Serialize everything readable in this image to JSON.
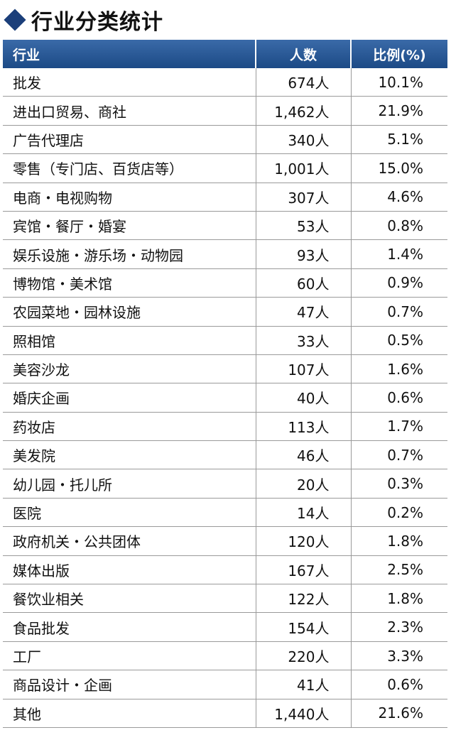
{
  "title": "行业分类统计",
  "table": {
    "headers": [
      "行业",
      "人数",
      "比例(%)"
    ],
    "rows": [
      {
        "industry": "批发",
        "count": "674人",
        "pct": "10.1%"
      },
      {
        "industry": "进出口贸易、商社",
        "count": "1,462人",
        "pct": "21.9%"
      },
      {
        "industry": "广告代理店",
        "count": "340人",
        "pct": "5.1%"
      },
      {
        "industry": "零售（专门店、百货店等）",
        "count": "1,001人",
        "pct": "15.0%"
      },
      {
        "industry": "电商・电视购物",
        "count": "307人",
        "pct": "4.6%"
      },
      {
        "industry": "宾馆・餐厅・婚宴",
        "count": "53人",
        "pct": "0.8%"
      },
      {
        "industry": "娱乐设施・游乐场・动物园",
        "count": "93人",
        "pct": "1.4%"
      },
      {
        "industry": "博物馆・美术馆",
        "count": "60人",
        "pct": "0.9%"
      },
      {
        "industry": "农园菜地・园林设施",
        "count": "47人",
        "pct": "0.7%"
      },
      {
        "industry": "照相馆",
        "count": "33人",
        "pct": "0.5%"
      },
      {
        "industry": "美容沙龙",
        "count": "107人",
        "pct": "1.6%"
      },
      {
        "industry": "婚庆企画",
        "count": "40人",
        "pct": "0.6%"
      },
      {
        "industry": "药妆店",
        "count": "113人",
        "pct": "1.7%"
      },
      {
        "industry": "美发院",
        "count": "46人",
        "pct": "0.7%"
      },
      {
        "industry": "幼儿园・托儿所",
        "count": "20人",
        "pct": "0.3%"
      },
      {
        "industry": "医院",
        "count": "14人",
        "pct": "0.2%"
      },
      {
        "industry": "政府机关・公共团体",
        "count": "120人",
        "pct": "1.8%"
      },
      {
        "industry": "媒体出版",
        "count": "167人",
        "pct": "2.5%"
      },
      {
        "industry": "餐饮业相关",
        "count": "122人",
        "pct": "1.8%"
      },
      {
        "industry": "食品批发",
        "count": "154人",
        "pct": "2.3%"
      },
      {
        "industry": "工厂",
        "count": "220人",
        "pct": "3.3%"
      },
      {
        "industry": "商品设计・企画",
        "count": "41人",
        "pct": "0.6%"
      },
      {
        "industry": "其他",
        "count": "1,440人",
        "pct": "21.6%"
      }
    ]
  },
  "colors": {
    "header_bg": "#1c4a86",
    "diamond": "#1b3f7a",
    "grid": "#9a9a9a"
  }
}
